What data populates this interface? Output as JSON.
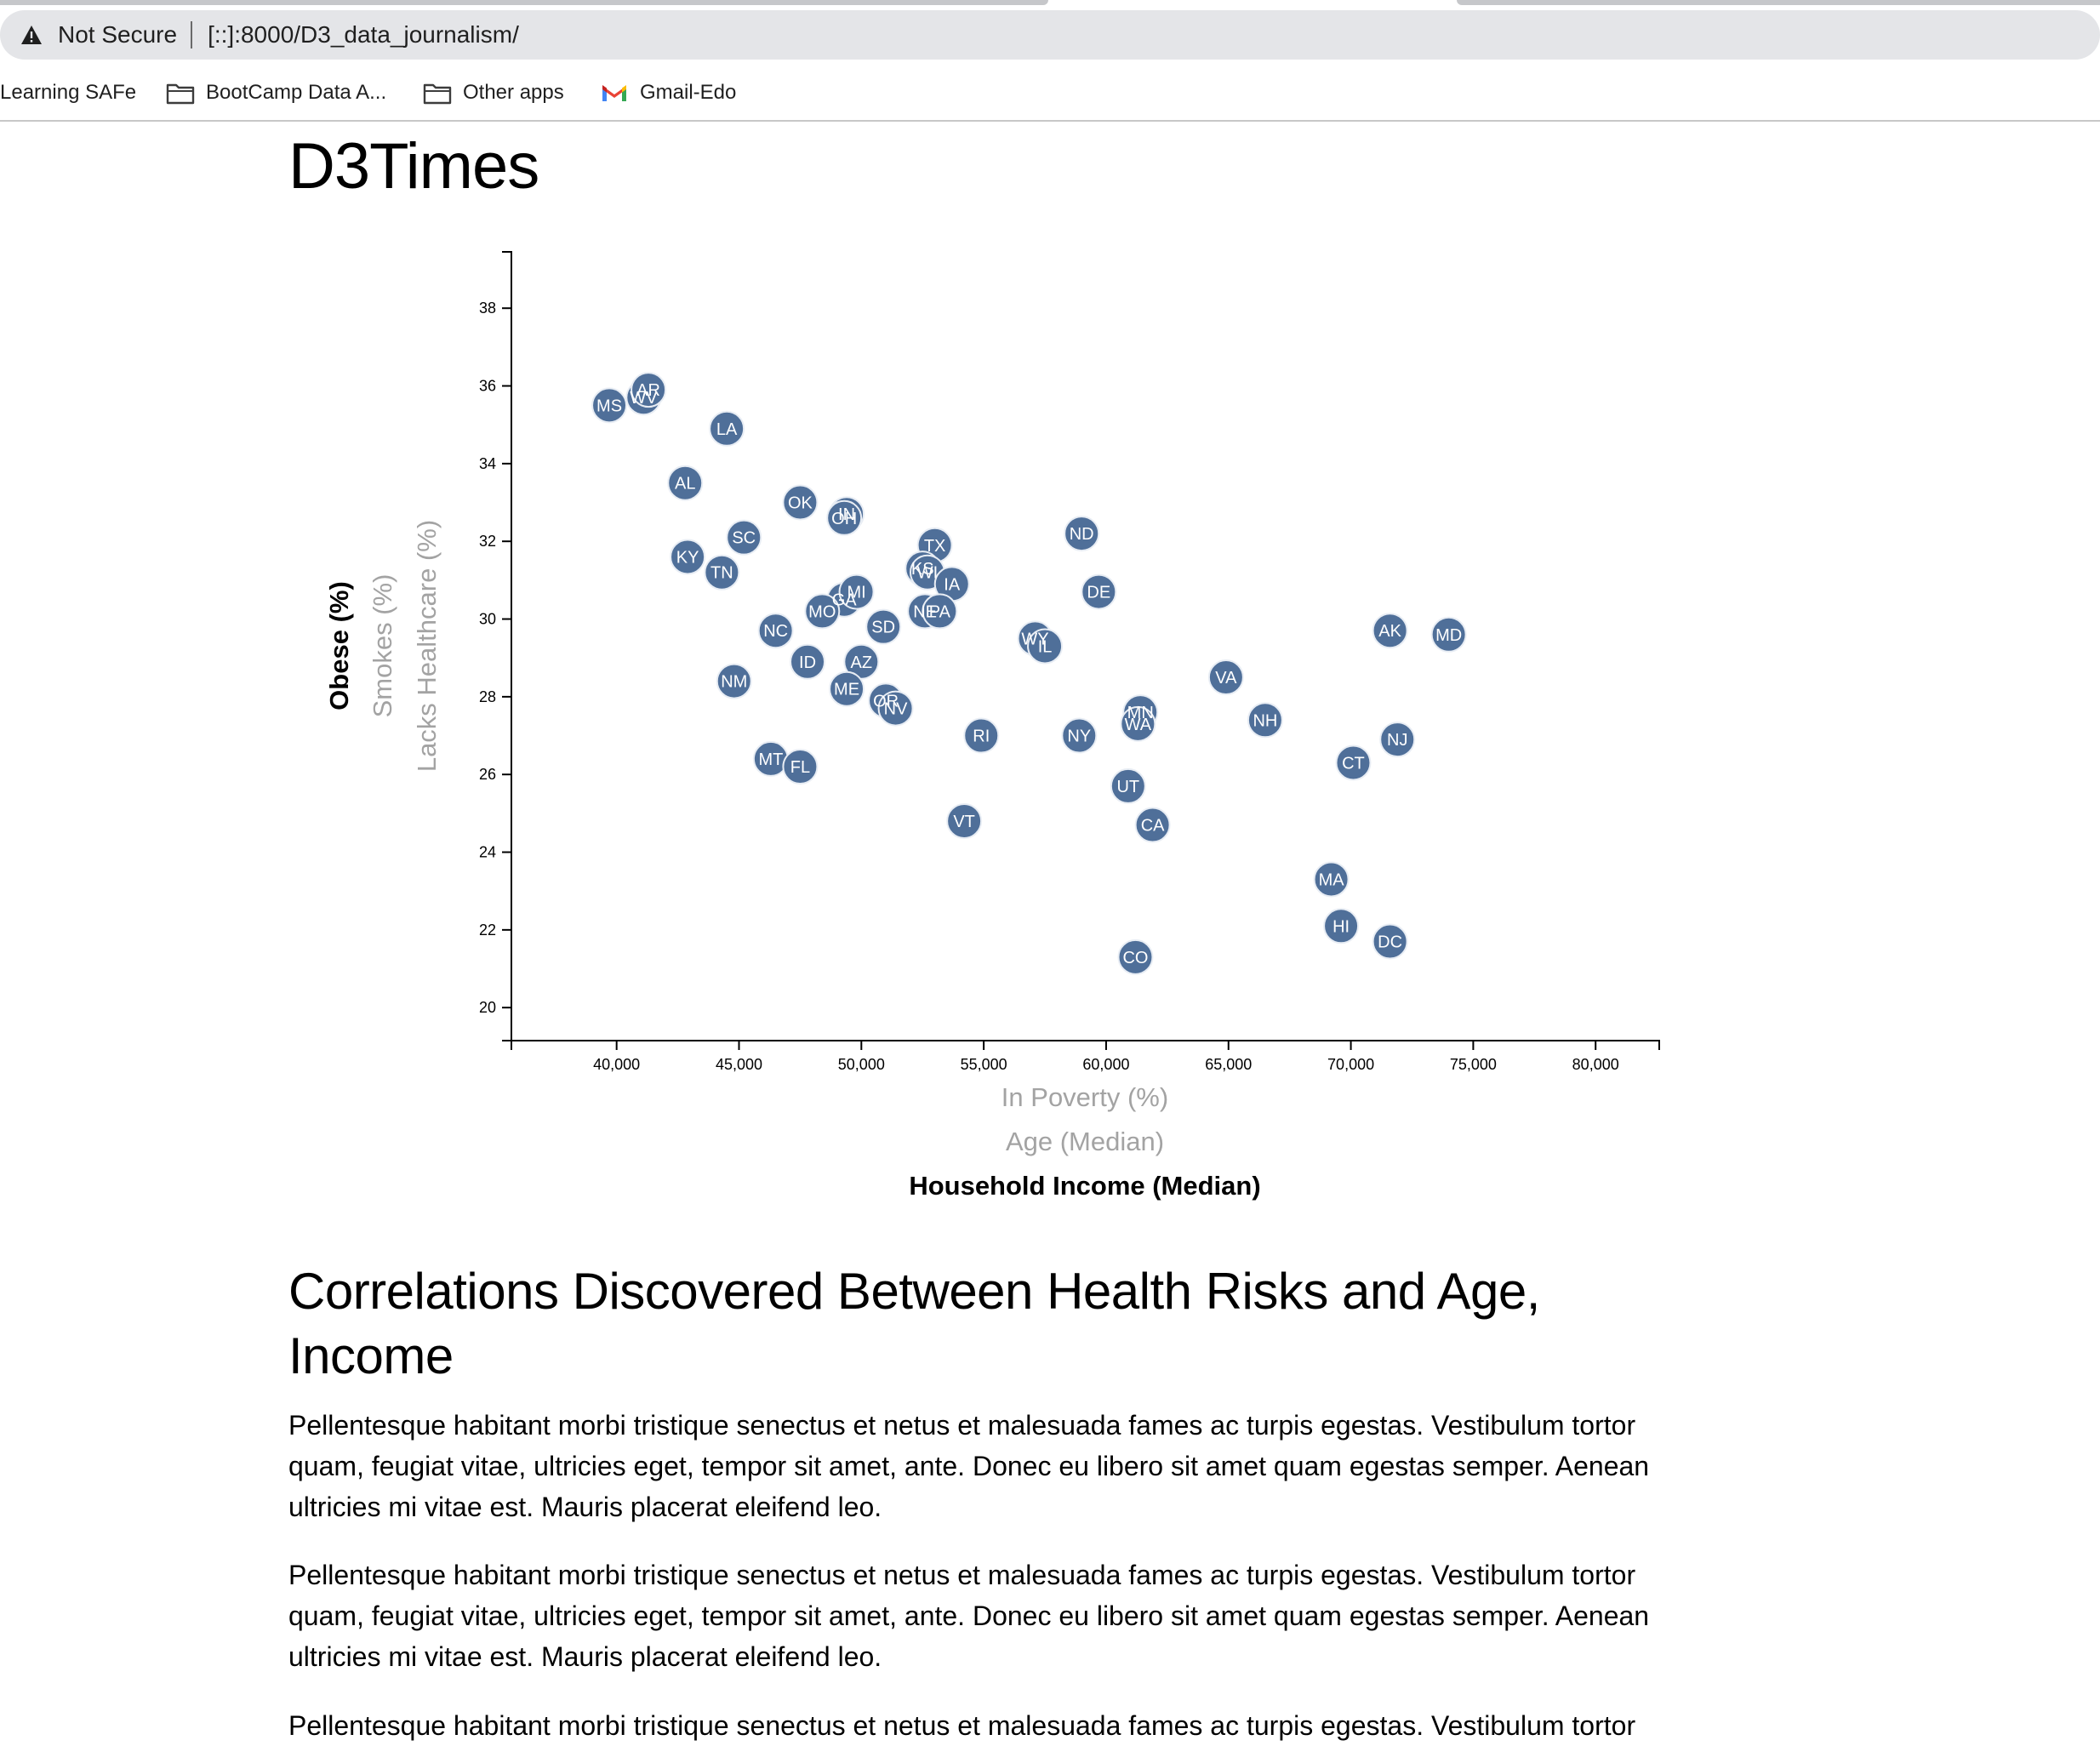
{
  "browser": {
    "security_label": "Not Secure",
    "url": "[::]:8000/D3_data_journalism/",
    "bookmarks": [
      {
        "label": "Learning SAFe",
        "icon": "none"
      },
      {
        "label": "BootCamp Data A...",
        "icon": "folder-icon"
      },
      {
        "label": "Other apps",
        "icon": "folder-icon"
      },
      {
        "label": "Gmail-Edo",
        "icon": "gmail-icon"
      }
    ]
  },
  "page": {
    "title": "D3Times"
  },
  "chart_data": {
    "type": "scatter",
    "xlim": [
      35700,
      82600
    ],
    "ylim": [
      19150,
      39450
    ],
    "ylim_units": "hundredths of percent",
    "x_ticks": [
      {
        "value": 40000,
        "label": "40,000"
      },
      {
        "value": 45000,
        "label": "45,000"
      },
      {
        "value": 50000,
        "label": "50,000"
      },
      {
        "value": 55000,
        "label": "55,000"
      },
      {
        "value": 60000,
        "label": "60,000"
      },
      {
        "value": 65000,
        "label": "65,000"
      },
      {
        "value": 70000,
        "label": "70,000"
      },
      {
        "value": 75000,
        "label": "75,000"
      },
      {
        "value": 80000,
        "label": "80,000"
      }
    ],
    "y_ticks": [
      {
        "value": 20,
        "label": "20"
      },
      {
        "value": 22,
        "label": "22"
      },
      {
        "value": 24,
        "label": "24"
      },
      {
        "value": 26,
        "label": "26"
      },
      {
        "value": 28,
        "label": "28"
      },
      {
        "value": 30,
        "label": "30"
      },
      {
        "value": 32,
        "label": "32"
      },
      {
        "value": 34,
        "label": "34"
      },
      {
        "value": 36,
        "label": "36"
      },
      {
        "value": 38,
        "label": "38"
      }
    ],
    "x_labels": [
      {
        "text": "In Poverty (%)",
        "active": false
      },
      {
        "text": "Age (Median)",
        "active": false
      },
      {
        "text": "Household Income (Median)",
        "active": true
      }
    ],
    "y_labels": [
      {
        "text": "Obese (%)",
        "active": true
      },
      {
        "text": "Smokes (%)",
        "active": false
      },
      {
        "text": "Lacks Healthcare (%)",
        "active": false
      }
    ],
    "points": [
      {
        "abbr": "MS",
        "x": 39700,
        "y": 35.5
      },
      {
        "abbr": "WV",
        "x": 41100,
        "y": 35.7
      },
      {
        "abbr": "AR",
        "x": 41300,
        "y": 35.9
      },
      {
        "abbr": "LA",
        "x": 44500,
        "y": 34.9
      },
      {
        "abbr": "AL",
        "x": 42800,
        "y": 33.5
      },
      {
        "abbr": "OK",
        "x": 47500,
        "y": 33.0
      },
      {
        "abbr": "IN",
        "x": 49400,
        "y": 32.7
      },
      {
        "abbr": "OH",
        "x": 49300,
        "y": 32.6
      },
      {
        "abbr": "SC",
        "x": 45200,
        "y": 32.1
      },
      {
        "abbr": "KY",
        "x": 42900,
        "y": 31.6
      },
      {
        "abbr": "TN",
        "x": 44300,
        "y": 31.2
      },
      {
        "abbr": "TX",
        "x": 53000,
        "y": 31.9
      },
      {
        "abbr": "KS",
        "x": 52500,
        "y": 31.3
      },
      {
        "abbr": "WI",
        "x": 52700,
        "y": 31.2
      },
      {
        "abbr": "IA",
        "x": 53700,
        "y": 30.9
      },
      {
        "abbr": "ND",
        "x": 59000,
        "y": 32.2
      },
      {
        "abbr": "DE",
        "x": 59700,
        "y": 30.7
      },
      {
        "abbr": "GA",
        "x": 49300,
        "y": 30.5
      },
      {
        "abbr": "MI",
        "x": 49800,
        "y": 30.7
      },
      {
        "abbr": "MO",
        "x": 48400,
        "y": 30.2
      },
      {
        "abbr": "NE",
        "x": 52600,
        "y": 30.2
      },
      {
        "abbr": "PA",
        "x": 53200,
        "y": 30.2
      },
      {
        "abbr": "SD",
        "x": 50900,
        "y": 29.8
      },
      {
        "abbr": "NC",
        "x": 46500,
        "y": 29.7
      },
      {
        "abbr": "WY",
        "x": 57100,
        "y": 29.5
      },
      {
        "abbr": "IL",
        "x": 57500,
        "y": 29.3
      },
      {
        "abbr": "AK",
        "x": 71600,
        "y": 29.7
      },
      {
        "abbr": "MD",
        "x": 74000,
        "y": 29.6
      },
      {
        "abbr": "ID",
        "x": 47800,
        "y": 28.9
      },
      {
        "abbr": "AZ",
        "x": 50000,
        "y": 28.9
      },
      {
        "abbr": "NM",
        "x": 44800,
        "y": 28.4
      },
      {
        "abbr": "ME",
        "x": 49400,
        "y": 28.2
      },
      {
        "abbr": "OR",
        "x": 51000,
        "y": 27.9
      },
      {
        "abbr": "NV",
        "x": 51400,
        "y": 27.7
      },
      {
        "abbr": "VA",
        "x": 64900,
        "y": 28.5
      },
      {
        "abbr": "MN",
        "x": 61400,
        "y": 27.6
      },
      {
        "abbr": "WA",
        "x": 61300,
        "y": 27.3
      },
      {
        "abbr": "NH",
        "x": 66500,
        "y": 27.4
      },
      {
        "abbr": "RI",
        "x": 54900,
        "y": 27.0
      },
      {
        "abbr": "NY",
        "x": 58900,
        "y": 27.0
      },
      {
        "abbr": "NJ",
        "x": 71900,
        "y": 26.9
      },
      {
        "abbr": "MT",
        "x": 46300,
        "y": 26.4
      },
      {
        "abbr": "FL",
        "x": 47500,
        "y": 26.2
      },
      {
        "abbr": "CT",
        "x": 70100,
        "y": 26.3
      },
      {
        "abbr": "UT",
        "x": 60900,
        "y": 25.7
      },
      {
        "abbr": "CA",
        "x": 61900,
        "y": 24.7
      },
      {
        "abbr": "VT",
        "x": 54200,
        "y": 24.8
      },
      {
        "abbr": "MA",
        "x": 69200,
        "y": 23.3
      },
      {
        "abbr": "HI",
        "x": 69600,
        "y": 22.1
      },
      {
        "abbr": "DC",
        "x": 71600,
        "y": 21.7
      },
      {
        "abbr": "CO",
        "x": 61200,
        "y": 21.3
      }
    ],
    "colors": {
      "marker": "#4f6f99",
      "marker_text": "#ffffff",
      "inactive_label": "#a3a3a3"
    }
  },
  "article": {
    "heading": "Correlations Discovered Between Health Risks and Age, Income",
    "paragraphs": [
      "Pellentesque habitant morbi tristique senectus et netus et malesuada fames ac turpis egestas. Vestibulum tortor quam, feugiat vitae, ultricies eget, tempor sit amet, ante. Donec eu libero sit amet quam egestas semper. Aenean ultricies mi vitae est. Mauris placerat eleifend leo.",
      "Pellentesque habitant morbi tristique senectus et netus et malesuada fames ac turpis egestas. Vestibulum tortor quam, feugiat vitae, ultricies eget, tempor sit amet, ante. Donec eu libero sit amet quam egestas semper. Aenean ultricies mi vitae est. Mauris placerat eleifend leo.",
      "Pellentesque habitant morbi tristique senectus et netus et malesuada fames ac turpis egestas. Vestibulum tortor"
    ]
  }
}
